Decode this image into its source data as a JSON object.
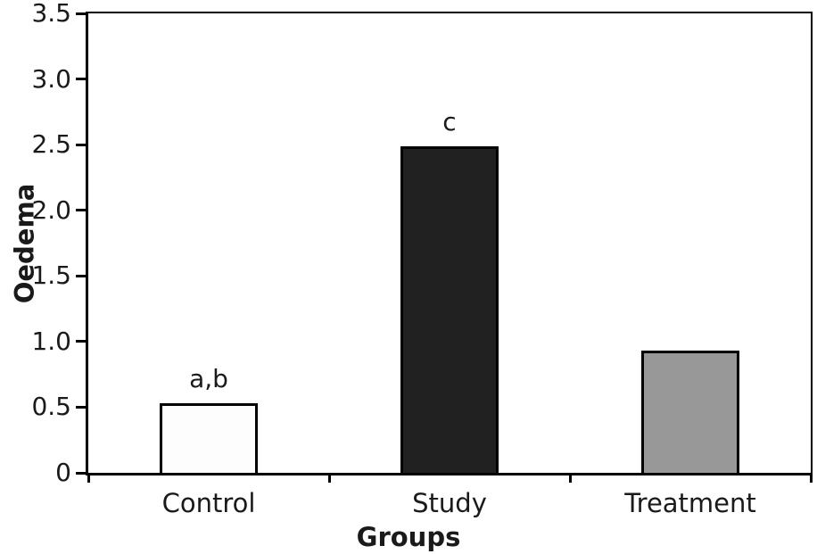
{
  "figure": {
    "background": "#ffffff",
    "text_color": "#1a1a1a",
    "axis_color": "#000000"
  },
  "chart_data": {
    "type": "bar",
    "title": "",
    "xlabel": "Groups",
    "ylabel": "Oedema",
    "categories": [
      "Control",
      "Study",
      "Treatment"
    ],
    "values": [
      0.53,
      2.49,
      0.93
    ],
    "bar_annotations": [
      "a,b",
      "c",
      ""
    ],
    "bar_colors": [
      "#fdfdfd",
      "#212121",
      "#989898"
    ],
    "bar_border_color": "#000000",
    "ylim": [
      0,
      3.5
    ],
    "ytick_step": 0.5,
    "ytick_labels": [
      "0",
      "0.5",
      "1.0",
      "1.5",
      "2.0",
      "2.5",
      "3.0",
      "3.5"
    ],
    "grid": false,
    "legend": null,
    "plot_border": true
  }
}
